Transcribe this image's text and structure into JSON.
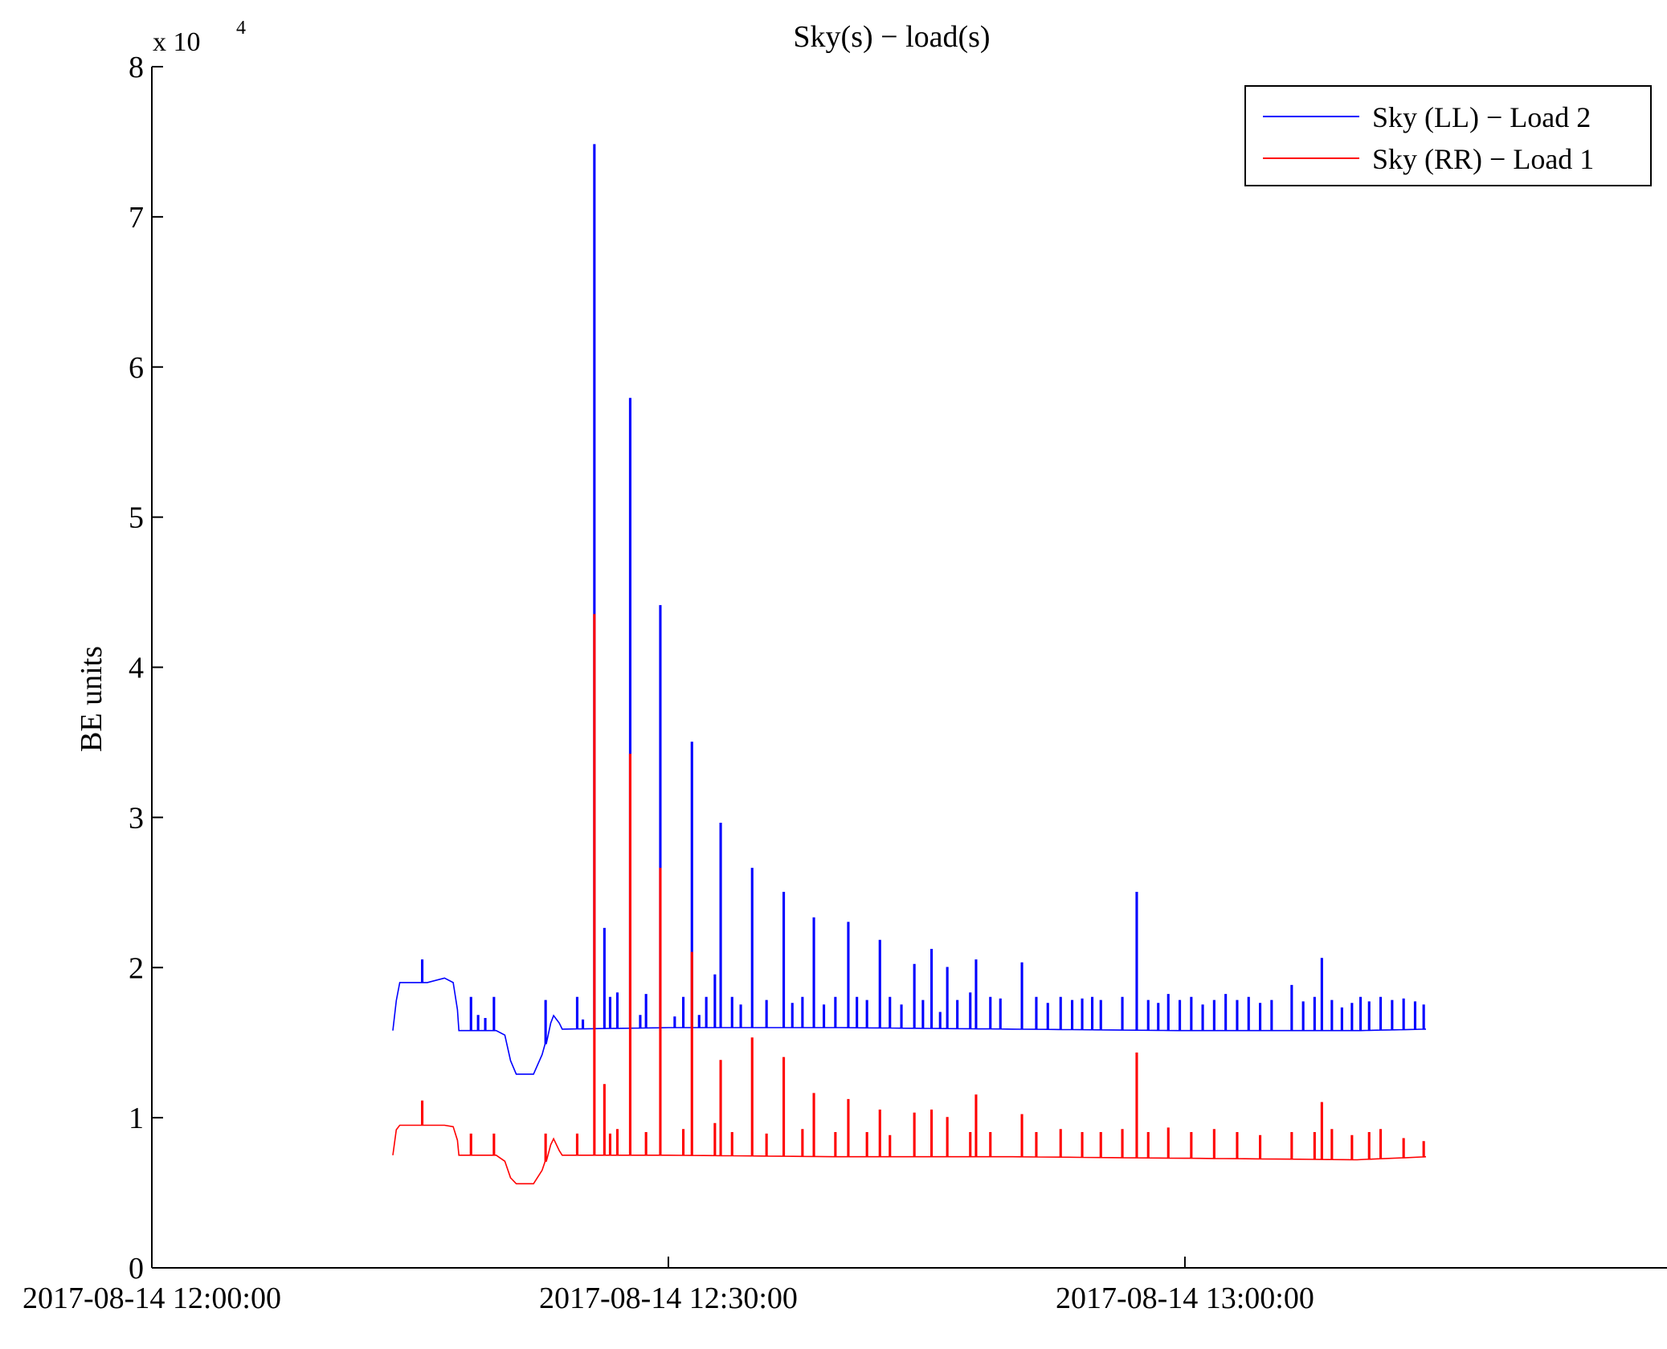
{
  "chart_data": {
    "type": "line",
    "title": "Sky(s) − load(s)",
    "xlabel": "",
    "ylabel": "BE units",
    "y_scale_note": {
      "base": "x 10",
      "exponent": "4"
    },
    "xlim": [
      "2017-08-14 12:00:00",
      "2017-08-14 13:28:00"
    ],
    "ylim": [
      0,
      80000
    ],
    "x_ticks": [
      "2017-08-14 12:00:00",
      "2017-08-14 12:30:00",
      "2017-08-14 13:00:00"
    ],
    "y_ticks": [
      "0",
      "1",
      "2",
      "3",
      "4",
      "5",
      "6",
      "7",
      "8"
    ],
    "legend": {
      "position": "top-right"
    },
    "grid": false,
    "series": [
      {
        "name": "Sky (LL) − Load 2",
        "color": "#0000ff",
        "base": [
          [
            "12:14:00",
            15800
          ],
          [
            "12:14:12",
            17800
          ],
          [
            "12:14:24",
            19000
          ],
          [
            "12:16:00",
            19000
          ],
          [
            "12:17:00",
            19300
          ],
          [
            "12:17:30",
            19000
          ],
          [
            "12:17:45",
            17200
          ],
          [
            "12:17:50",
            15800
          ],
          [
            "12:20:00",
            15800
          ],
          [
            "12:20:30",
            15500
          ],
          [
            "12:20:50",
            13800
          ],
          [
            "12:21:10",
            12900
          ],
          [
            "12:22:10",
            12900
          ],
          [
            "12:22:40",
            14200
          ],
          [
            "12:23:10",
            16300
          ],
          [
            "12:23:20",
            16800
          ],
          [
            "12:23:40",
            16300
          ],
          [
            "12:23:50",
            15900
          ],
          [
            "12:30:00",
            16000
          ],
          [
            "12:40:00",
            16000
          ],
          [
            "12:50:00",
            15900
          ],
          [
            "13:00:00",
            15800
          ],
          [
            "13:10:00",
            15800
          ],
          [
            "13:14:00",
            15900
          ]
        ],
        "spikes": [
          [
            "12:15:40",
            20500
          ],
          [
            "12:18:30",
            18000
          ],
          [
            "12:18:55",
            16800
          ],
          [
            "12:19:20",
            16600
          ],
          [
            "12:19:50",
            18000
          ],
          [
            "12:22:50",
            17800
          ],
          [
            "12:24:40",
            18000
          ],
          [
            "12:25:00",
            16500
          ],
          [
            "12:25:40",
            74800
          ],
          [
            "12:26:15",
            22600
          ],
          [
            "12:26:35",
            18000
          ],
          [
            "12:27:00",
            18300
          ],
          [
            "12:27:45",
            57900
          ],
          [
            "12:28:20",
            16800
          ],
          [
            "12:28:40",
            18200
          ],
          [
            "12:29:30",
            44100
          ],
          [
            "12:30:20",
            16700
          ],
          [
            "12:30:50",
            18000
          ],
          [
            "12:31:20",
            35000
          ],
          [
            "12:31:45",
            16800
          ],
          [
            "12:32:10",
            18000
          ],
          [
            "12:32:40",
            19500
          ],
          [
            "12:33:00",
            29600
          ],
          [
            "12:33:40",
            18000
          ],
          [
            "12:34:10",
            17500
          ],
          [
            "12:34:50",
            26600
          ],
          [
            "12:35:40",
            17800
          ],
          [
            "12:36:40",
            25000
          ],
          [
            "12:37:10",
            17600
          ],
          [
            "12:37:45",
            18000
          ],
          [
            "12:38:25",
            23300
          ],
          [
            "12:39:00",
            17500
          ],
          [
            "12:39:40",
            18000
          ],
          [
            "12:40:25",
            23000
          ],
          [
            "12:40:55",
            18000
          ],
          [
            "12:41:30",
            17800
          ],
          [
            "12:42:15",
            21800
          ],
          [
            "12:42:50",
            18000
          ],
          [
            "12:43:30",
            17500
          ],
          [
            "12:44:15",
            20200
          ],
          [
            "12:44:45",
            17800
          ],
          [
            "12:45:15",
            21200
          ],
          [
            "12:45:45",
            17000
          ],
          [
            "12:46:10",
            20000
          ],
          [
            "12:46:45",
            17800
          ],
          [
            "12:47:30",
            18300
          ],
          [
            "12:47:50",
            20500
          ],
          [
            "12:48:40",
            18000
          ],
          [
            "12:49:15",
            17900
          ],
          [
            "12:50:30",
            20300
          ],
          [
            "12:51:20",
            18000
          ],
          [
            "12:52:00",
            17600
          ],
          [
            "12:52:45",
            18000
          ],
          [
            "12:53:25",
            17800
          ],
          [
            "12:54:00",
            17900
          ],
          [
            "12:54:35",
            18000
          ],
          [
            "12:55:05",
            17800
          ],
          [
            "12:56:20",
            18000
          ],
          [
            "12:57:10",
            25000
          ],
          [
            "12:57:50",
            17800
          ],
          [
            "12:58:25",
            17600
          ],
          [
            "12:59:00",
            18200
          ],
          [
            "12:59:40",
            17800
          ],
          [
            "13:00:20",
            18000
          ],
          [
            "13:01:00",
            17500
          ],
          [
            "13:01:40",
            17800
          ],
          [
            "13:02:20",
            18200
          ],
          [
            "13:03:00",
            17800
          ],
          [
            "13:03:40",
            18000
          ],
          [
            "13:04:20",
            17600
          ],
          [
            "13:05:00",
            17800
          ],
          [
            "13:06:10",
            18800
          ],
          [
            "13:06:50",
            17700
          ],
          [
            "13:07:30",
            18000
          ],
          [
            "13:07:55",
            20600
          ],
          [
            "13:08:30",
            17800
          ],
          [
            "13:09:05",
            17300
          ],
          [
            "13:09:40",
            17600
          ],
          [
            "13:10:10",
            18000
          ],
          [
            "13:10:40",
            17700
          ],
          [
            "13:11:20",
            18000
          ],
          [
            "13:12:00",
            17800
          ],
          [
            "13:12:40",
            17900
          ],
          [
            "13:13:20",
            17700
          ],
          [
            "13:13:50",
            17500
          ]
        ]
      },
      {
        "name": "Sky (RR) − Load 1",
        "color": "#ff0000",
        "base": [
          [
            "12:14:00",
            7500
          ],
          [
            "12:14:12",
            9200
          ],
          [
            "12:14:24",
            9500
          ],
          [
            "12:17:00",
            9500
          ],
          [
            "12:17:30",
            9400
          ],
          [
            "12:17:45",
            8500
          ],
          [
            "12:17:50",
            7500
          ],
          [
            "12:20:00",
            7500
          ],
          [
            "12:20:30",
            7100
          ],
          [
            "12:20:50",
            6000
          ],
          [
            "12:21:10",
            5600
          ],
          [
            "12:22:10",
            5600
          ],
          [
            "12:22:40",
            6500
          ],
          [
            "12:23:10",
            8200
          ],
          [
            "12:23:20",
            8600
          ],
          [
            "12:23:40",
            7800
          ],
          [
            "12:23:50",
            7500
          ],
          [
            "12:30:00",
            7500
          ],
          [
            "12:40:00",
            7400
          ],
          [
            "12:50:00",
            7400
          ],
          [
            "13:00:00",
            7300
          ],
          [
            "13:10:00",
            7200
          ],
          [
            "13:14:00",
            7400
          ]
        ],
        "spikes": [
          [
            "12:15:40",
            11100
          ],
          [
            "12:18:30",
            8900
          ],
          [
            "12:19:50",
            8900
          ],
          [
            "12:22:50",
            8900
          ],
          [
            "12:24:40",
            8900
          ],
          [
            "12:25:40",
            43500
          ],
          [
            "12:26:15",
            12200
          ],
          [
            "12:26:35",
            8900
          ],
          [
            "12:27:00",
            9200
          ],
          [
            "12:27:45",
            34200
          ],
          [
            "12:28:40",
            9000
          ],
          [
            "12:29:30",
            26600
          ],
          [
            "12:30:50",
            9200
          ],
          [
            "12:31:20",
            21000
          ],
          [
            "12:32:40",
            9600
          ],
          [
            "12:33:00",
            13800
          ],
          [
            "12:33:40",
            9000
          ],
          [
            "12:34:50",
            15300
          ],
          [
            "12:35:40",
            8900
          ],
          [
            "12:36:40",
            14000
          ],
          [
            "12:37:45",
            9200
          ],
          [
            "12:38:25",
            11600
          ],
          [
            "12:39:40",
            9000
          ],
          [
            "12:40:25",
            11200
          ],
          [
            "12:41:30",
            9000
          ],
          [
            "12:42:15",
            10500
          ],
          [
            "12:42:50",
            8800
          ],
          [
            "12:44:15",
            10300
          ],
          [
            "12:45:15",
            10500
          ],
          [
            "12:46:10",
            10000
          ],
          [
            "12:47:30",
            9000
          ],
          [
            "12:47:50",
            11500
          ],
          [
            "12:48:40",
            9000
          ],
          [
            "12:50:30",
            10200
          ],
          [
            "12:51:20",
            9000
          ],
          [
            "12:52:45",
            9200
          ],
          [
            "12:54:00",
            9000
          ],
          [
            "12:55:05",
            9000
          ],
          [
            "12:56:20",
            9200
          ],
          [
            "12:57:10",
            14300
          ],
          [
            "12:57:50",
            9000
          ],
          [
            "12:59:00",
            9300
          ],
          [
            "13:00:20",
            9000
          ],
          [
            "13:01:40",
            9200
          ],
          [
            "13:03:00",
            9000
          ],
          [
            "13:04:20",
            8800
          ],
          [
            "13:06:10",
            9000
          ],
          [
            "13:07:30",
            9000
          ],
          [
            "13:07:55",
            11000
          ],
          [
            "13:08:30",
            9200
          ],
          [
            "13:09:40",
            8800
          ],
          [
            "13:10:40",
            9000
          ],
          [
            "13:11:20",
            9200
          ],
          [
            "13:12:40",
            8600
          ],
          [
            "13:13:50",
            8400
          ]
        ]
      }
    ]
  }
}
